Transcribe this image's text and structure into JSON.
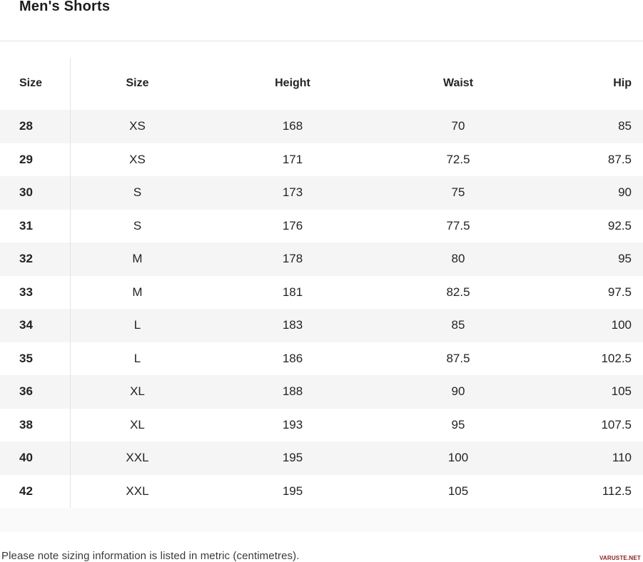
{
  "page": {
    "title": "Men's Shorts"
  },
  "table": {
    "columns": [
      {
        "label": "Size"
      },
      {
        "label": "Size"
      },
      {
        "label": "Height"
      },
      {
        "label": "Waist"
      },
      {
        "label": "Hip"
      }
    ],
    "rows": [
      {
        "us": "28",
        "size": "XS",
        "height": "168",
        "waist": "70",
        "hip": "85"
      },
      {
        "us": "29",
        "size": "XS",
        "height": "171",
        "waist": "72.5",
        "hip": "87.5"
      },
      {
        "us": "30",
        "size": "S",
        "height": "173",
        "waist": "75",
        "hip": "90"
      },
      {
        "us": "31",
        "size": "S",
        "height": "176",
        "waist": "77.5",
        "hip": "92.5"
      },
      {
        "us": "32",
        "size": "M",
        "height": "178",
        "waist": "80",
        "hip": "95"
      },
      {
        "us": "33",
        "size": "M",
        "height": "181",
        "waist": "82.5",
        "hip": "97.5"
      },
      {
        "us": "34",
        "size": "L",
        "height": "183",
        "waist": "85",
        "hip": "100"
      },
      {
        "us": "35",
        "size": "L",
        "height": "186",
        "waist": "87.5",
        "hip": "102.5"
      },
      {
        "us": "36",
        "size": "XL",
        "height": "188",
        "waist": "90",
        "hip": "105"
      },
      {
        "us": "38",
        "size": "XL",
        "height": "193",
        "waist": "95",
        "hip": "107.5"
      },
      {
        "us": "40",
        "size": "XXL",
        "height": "195",
        "waist": "100",
        "hip": "110"
      },
      {
        "us": "42",
        "size": "XXL",
        "height": "195",
        "waist": "105",
        "hip": "112.5"
      }
    ]
  },
  "footer": {
    "note": "Please note sizing information is listed in metric (centimetres).",
    "watermark": "VARUSTE.NET"
  },
  "colors": {
    "stripe": "#f5f5f6",
    "band": "#fafafa",
    "border": "#e2e2e2",
    "text": "#232323",
    "watermark": "#8b1e1e"
  }
}
